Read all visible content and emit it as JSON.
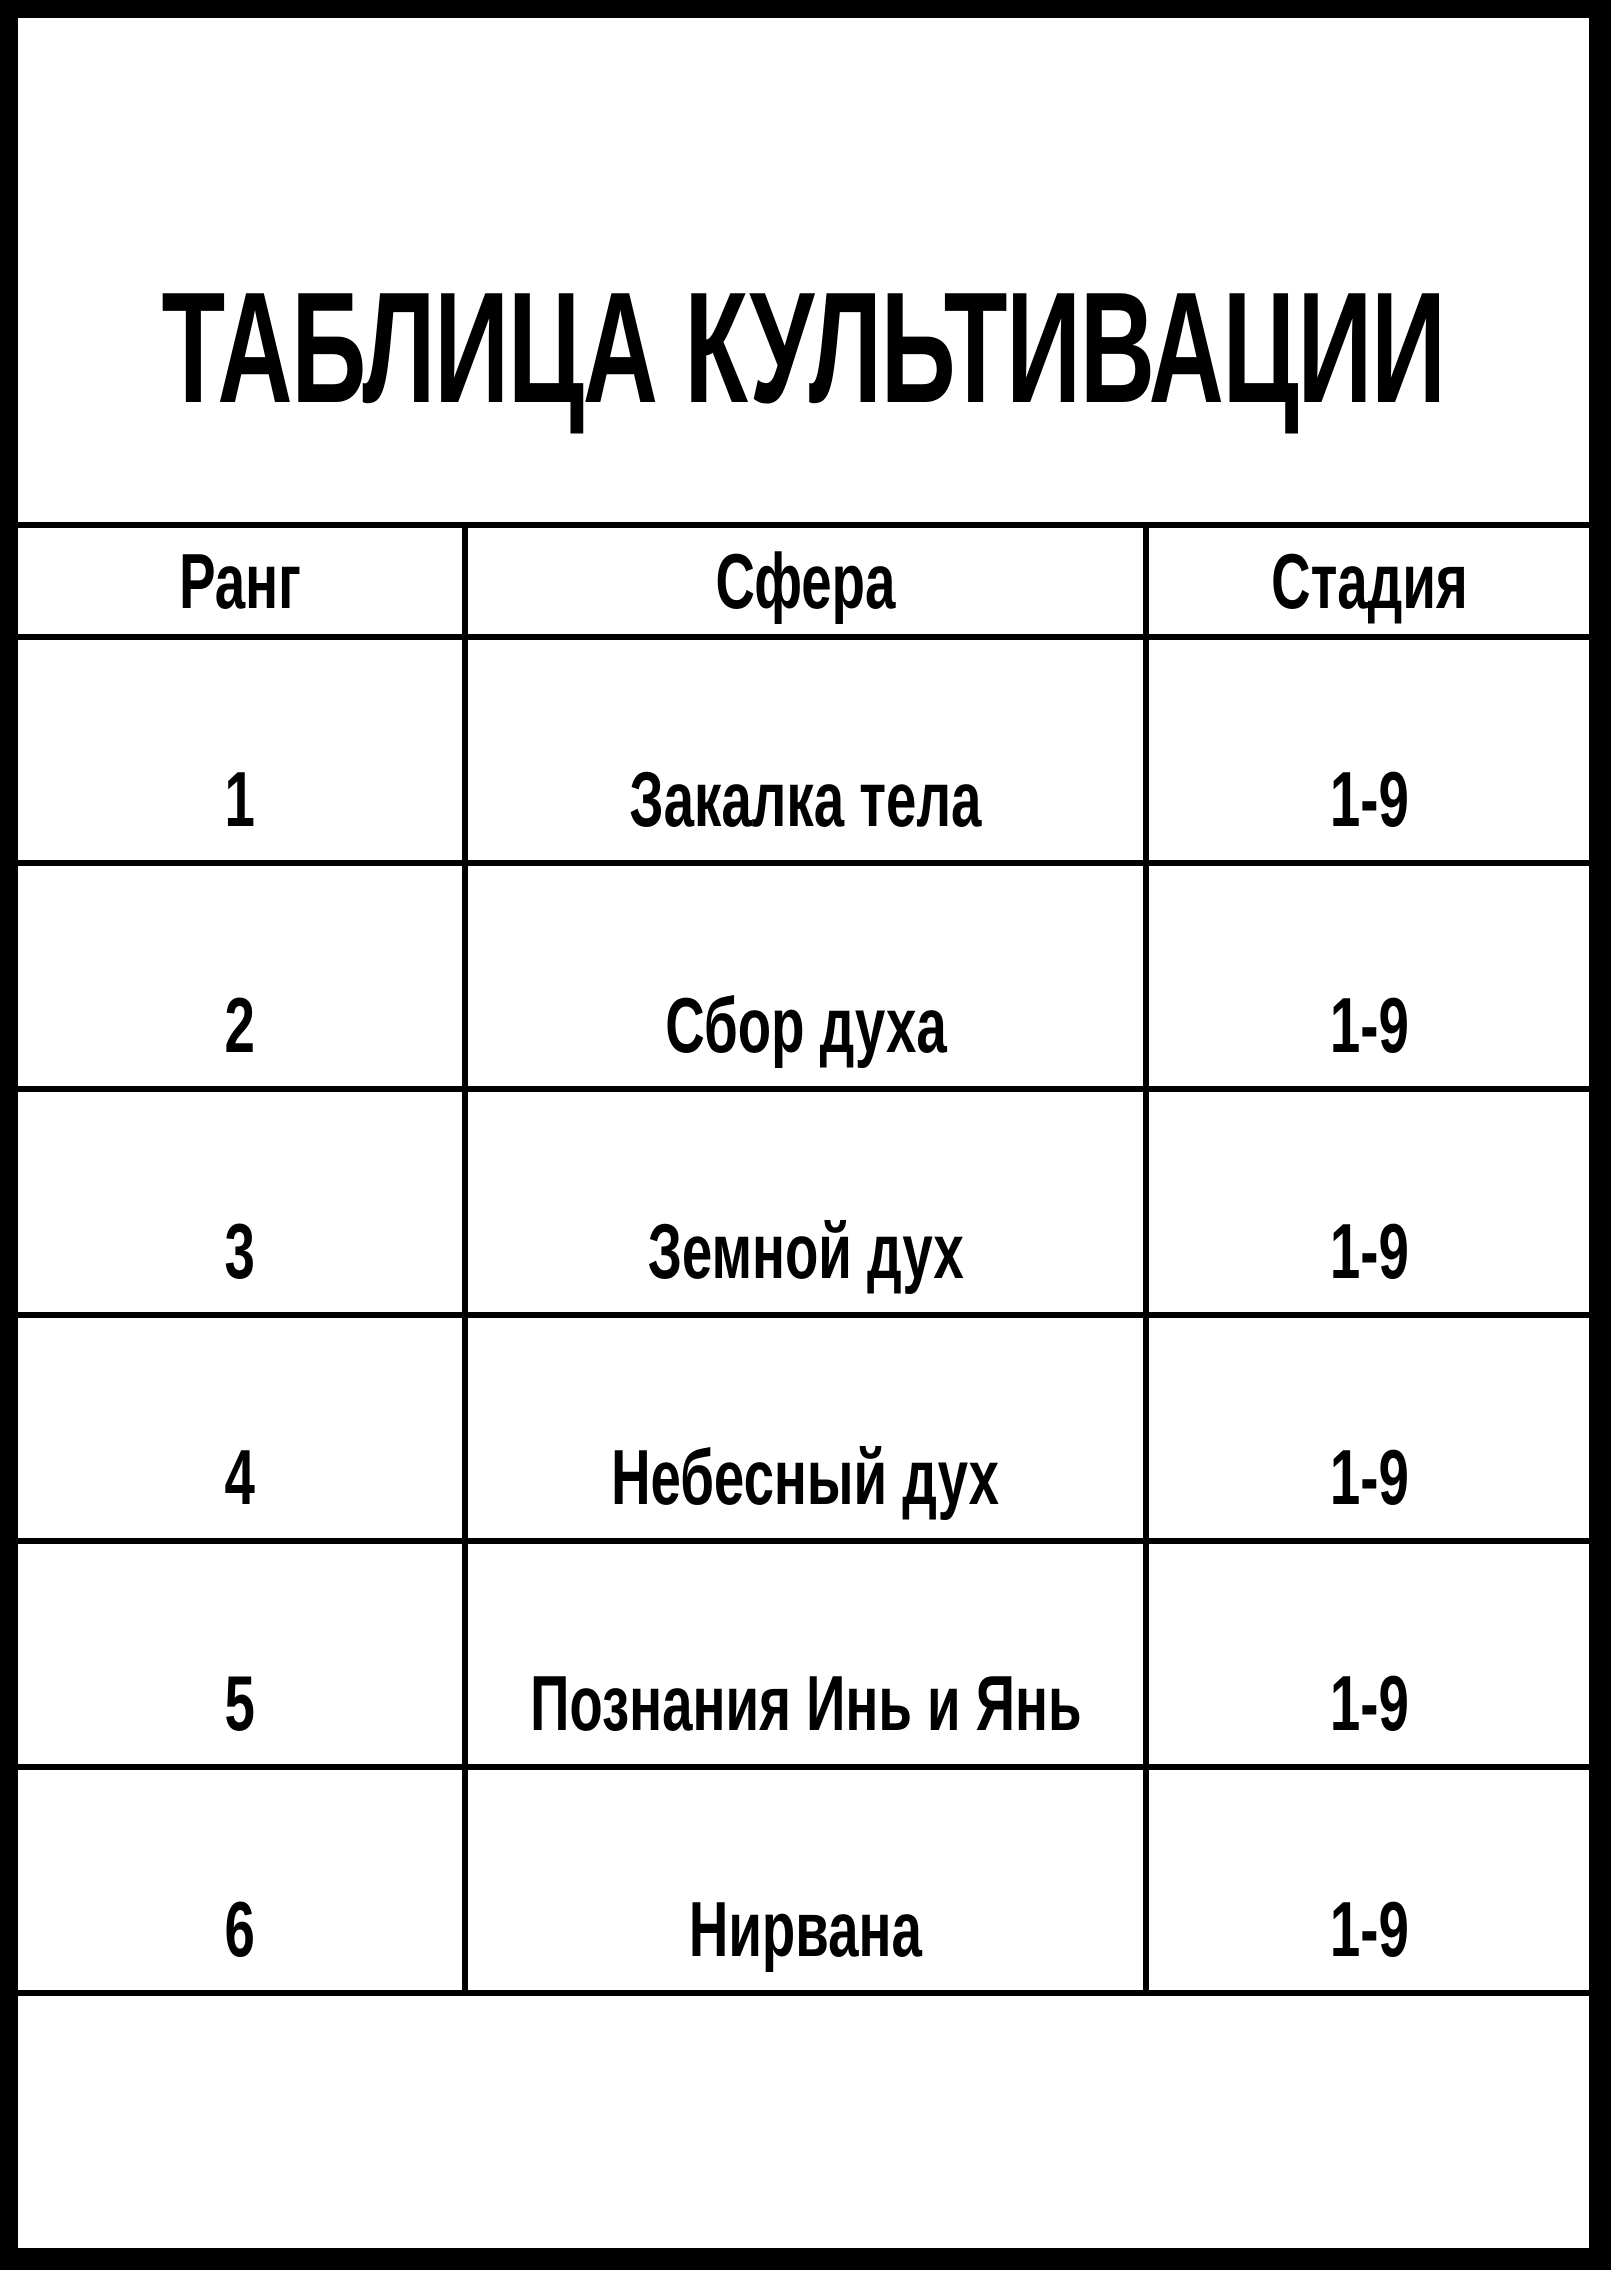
{
  "title": "ТАБЛИЦА КУЛЬТИВАЦИИ",
  "table": {
    "headers": [
      "Ранг",
      "Сфера",
      "Стадия"
    ],
    "rows": [
      {
        "rank": "1",
        "sphere": "Закалка тела",
        "stage": "1-9"
      },
      {
        "rank": "2",
        "sphere": "Сбор духа",
        "stage": "1-9"
      },
      {
        "rank": "3",
        "sphere": "Земной дух",
        "stage": "1-9"
      },
      {
        "rank": "4",
        "sphere": "Небесный дух",
        "stage": "1-9"
      },
      {
        "rank": "5",
        "sphere": "Познания Инь и Янь",
        "stage": "1-9"
      },
      {
        "rank": "6",
        "sphere": "Нирвана",
        "stage": "1-9"
      }
    ]
  }
}
